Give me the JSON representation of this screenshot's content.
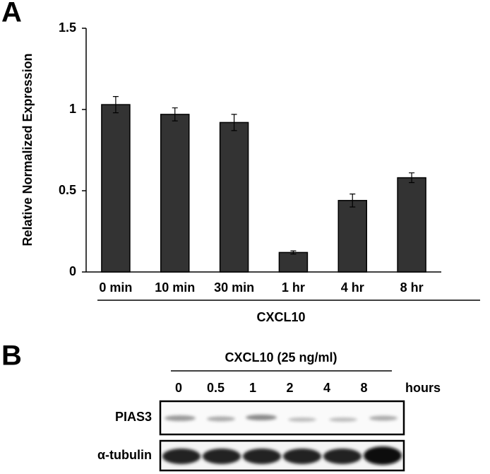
{
  "chart_data": {
    "type": "bar",
    "panel_label": "A",
    "y_label": "Relative Normalized Expression",
    "categories": [
      "0 min",
      "10 min",
      "30 min",
      "1 hr",
      "4 hr",
      "8 hr"
    ],
    "group_label": "CXCL10",
    "values": [
      1.03,
      0.97,
      0.92,
      0.12,
      0.44,
      0.58
    ],
    "errors": [
      0.05,
      0.04,
      0.05,
      0.01,
      0.04,
      0.03
    ],
    "color": "#333333",
    "ylim": [
      0,
      1.5
    ],
    "yticks": [
      0,
      0.5,
      1,
      1.5
    ]
  },
  "blot": {
    "panel_label": "B",
    "treatment": "CXCL10 (25 ng/ml)",
    "lanes": [
      "0",
      "0.5",
      "1",
      "2",
      "4",
      "8"
    ],
    "lane_unit": "hours",
    "rows": [
      "PIAS3",
      "α-tubulin"
    ]
  }
}
